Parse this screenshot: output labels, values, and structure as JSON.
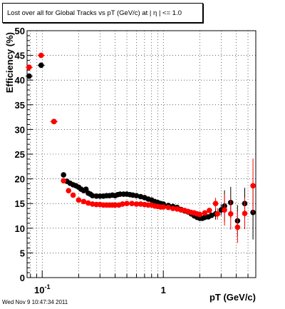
{
  "chart_data": {
    "type": "scatter",
    "title": "Lost over all for Global Tracks vs pT (GeV/c) at |  η | <= 1.0",
    "xlabel": "pT (GeV/c)",
    "ylabel": "Efficiency (%)",
    "xscale": "log",
    "xlim": [
      0.075,
      5.8
    ],
    "ylim": [
      0,
      50
    ],
    "y_ticks": [
      "0",
      "5",
      "10",
      "15",
      "20",
      "25",
      "30",
      "35",
      "40",
      "45",
      "50"
    ],
    "x_tick_labels": [
      {
        "value": 0.1,
        "base": "10",
        "exp": "-1"
      },
      {
        "value": 1,
        "base": "1",
        "exp": ""
      }
    ],
    "grid": true,
    "series": [
      {
        "color": "#000000",
        "points": [
          [
            0.078,
            40.8
          ],
          [
            0.098,
            43.0
          ],
          [
            0.125,
            31.6
          ],
          [
            0.15,
            20.8
          ],
          [
            0.16,
            19.5
          ],
          [
            0.17,
            19.1
          ],
          [
            0.18,
            18.8
          ],
          [
            0.19,
            18.6
          ],
          [
            0.2,
            18.3
          ],
          [
            0.21,
            17.9
          ],
          [
            0.22,
            17.6
          ],
          [
            0.23,
            17.9
          ],
          [
            0.24,
            17.1
          ],
          [
            0.25,
            16.9
          ],
          [
            0.26,
            16.6
          ],
          [
            0.28,
            16.5
          ],
          [
            0.3,
            16.5
          ],
          [
            0.32,
            16.5
          ],
          [
            0.34,
            16.6
          ],
          [
            0.36,
            16.6
          ],
          [
            0.38,
            16.7
          ],
          [
            0.4,
            16.6
          ],
          [
            0.42,
            16.8
          ],
          [
            0.44,
            16.9
          ],
          [
            0.47,
            16.9
          ],
          [
            0.5,
            16.9
          ],
          [
            0.53,
            16.8
          ],
          [
            0.56,
            16.7
          ],
          [
            0.6,
            16.6
          ],
          [
            0.65,
            16.4
          ],
          [
            0.7,
            16.2
          ],
          [
            0.75,
            15.9
          ],
          [
            0.8,
            15.7
          ],
          [
            0.85,
            15.4
          ],
          [
            0.9,
            15.2
          ],
          [
            0.95,
            15.0
          ],
          [
            1.0,
            14.9
          ],
          [
            1.1,
            14.6
          ],
          [
            1.2,
            14.4
          ],
          [
            1.3,
            14.2
          ],
          [
            1.4,
            13.8
          ],
          [
            1.5,
            13.5
          ],
          [
            1.6,
            13.3
          ],
          [
            1.7,
            12.9
          ],
          [
            1.8,
            12.5
          ],
          [
            1.9,
            12.2
          ],
          [
            2.0,
            12.0
          ],
          [
            2.1,
            12.0
          ],
          [
            2.2,
            12.2
          ],
          [
            2.35,
            12.3
          ],
          [
            2.5,
            12.6
          ],
          [
            2.7,
            12.9
          ],
          [
            3.0,
            13.7
          ],
          [
            3.2,
            14.5
          ],
          [
            3.6,
            15.2
          ],
          [
            4.1,
            11.5
          ],
          [
            4.7,
            15.0
          ],
          [
            5.5,
            13.2
          ]
        ]
      },
      {
        "color": "#ff0000",
        "points": [
          [
            0.078,
            42.6
          ],
          [
            0.098,
            45.0
          ],
          [
            0.125,
            31.6
          ],
          [
            0.15,
            19.6
          ],
          [
            0.165,
            17.6
          ],
          [
            0.18,
            16.7
          ],
          [
            0.2,
            15.7
          ],
          [
            0.22,
            15.4
          ],
          [
            0.24,
            15.1
          ],
          [
            0.26,
            14.9
          ],
          [
            0.28,
            14.8
          ],
          [
            0.3,
            14.8
          ],
          [
            0.32,
            14.7
          ],
          [
            0.34,
            14.7
          ],
          [
            0.36,
            14.7
          ],
          [
            0.38,
            14.7
          ],
          [
            0.4,
            14.7
          ],
          [
            0.43,
            14.7
          ],
          [
            0.46,
            14.9
          ],
          [
            0.5,
            15.0
          ],
          [
            0.55,
            15.0
          ],
          [
            0.6,
            14.9
          ],
          [
            0.65,
            14.9
          ],
          [
            0.7,
            14.8
          ],
          [
            0.75,
            14.7
          ],
          [
            0.8,
            14.7
          ],
          [
            0.85,
            14.5
          ],
          [
            0.9,
            14.4
          ],
          [
            0.95,
            14.3
          ],
          [
            1.0,
            14.3
          ],
          [
            1.1,
            14.2
          ],
          [
            1.2,
            14.0
          ],
          [
            1.3,
            13.9
          ],
          [
            1.4,
            13.7
          ],
          [
            1.5,
            13.6
          ],
          [
            1.6,
            13.4
          ],
          [
            1.7,
            13.2
          ],
          [
            1.8,
            13.1
          ],
          [
            1.9,
            12.9
          ],
          [
            2.0,
            12.8
          ],
          [
            2.2,
            13.1
          ],
          [
            2.4,
            13.6
          ],
          [
            2.7,
            15.0
          ],
          [
            2.8,
            12.9
          ],
          [
            3.2,
            13.7
          ],
          [
            3.6,
            12.9
          ],
          [
            4.1,
            10.2
          ],
          [
            4.7,
            13.0
          ],
          [
            5.5,
            18.6
          ]
        ]
      }
    ]
  },
  "footer_text": "Wed Nov  9 10:47:34 2011"
}
